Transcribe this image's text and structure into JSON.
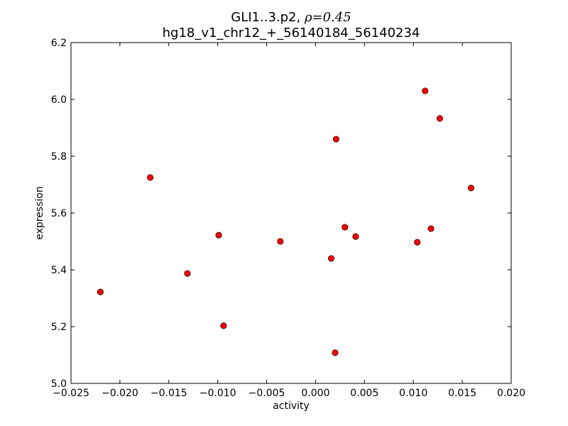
{
  "chart_data": {
    "type": "scatter",
    "title_name": "GLI1..3.p2,",
    "title_rho": "ρ=0.45",
    "subtitle": "hg18_v1_chr12_+_56140184_56140234",
    "xlabel": "activity",
    "ylabel": "expression",
    "xlim": [
      -0.025,
      0.02
    ],
    "ylim": [
      5.0,
      6.2
    ],
    "x_ticks": [
      -0.025,
      -0.02,
      -0.015,
      -0.01,
      -0.005,
      0.0,
      0.005,
      0.01,
      0.015,
      0.02
    ],
    "x_tick_labels": [
      "−0.025",
      "−0.020",
      "−0.015",
      "−0.010",
      "−0.005",
      "0.000",
      "0.005",
      "0.010",
      "0.015",
      "0.020"
    ],
    "y_ticks": [
      5.0,
      5.2,
      5.4,
      5.6,
      5.8,
      6.0,
      6.2
    ],
    "y_tick_labels": [
      "5.0",
      "5.2",
      "5.4",
      "5.6",
      "5.8",
      "6.0",
      "6.2"
    ],
    "grid": false,
    "marker_color": "#ff0000",
    "points": [
      {
        "x": -0.022,
        "y": 5.322
      },
      {
        "x": -0.0169,
        "y": 5.725
      },
      {
        "x": -0.0131,
        "y": 5.387
      },
      {
        "x": -0.0099,
        "y": 5.522
      },
      {
        "x": -0.0094,
        "y": 5.203
      },
      {
        "x": -0.0036,
        "y": 5.5
      },
      {
        "x": 0.0016,
        "y": 5.44
      },
      {
        "x": 0.002,
        "y": 5.108
      },
      {
        "x": 0.0021,
        "y": 5.86
      },
      {
        "x": 0.003,
        "y": 5.55
      },
      {
        "x": 0.0041,
        "y": 5.517
      },
      {
        "x": 0.0104,
        "y": 5.497
      },
      {
        "x": 0.0112,
        "y": 6.03
      },
      {
        "x": 0.0118,
        "y": 5.545
      },
      {
        "x": 0.0127,
        "y": 5.933
      },
      {
        "x": 0.0159,
        "y": 5.688
      }
    ]
  }
}
